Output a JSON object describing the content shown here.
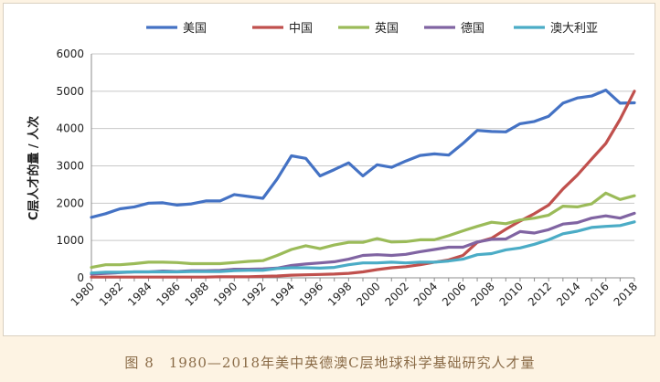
{
  "caption": "图 8　1980—2018年美中英德澳C层地球科学基础研究人才量",
  "chart_data": {
    "type": "line",
    "title": "",
    "xlabel": "",
    "ylabel": "C层人才的量 / 人次",
    "x": [
      1980,
      1981,
      1982,
      1983,
      1984,
      1985,
      1986,
      1987,
      1988,
      1989,
      1990,
      1991,
      1992,
      1993,
      1994,
      1995,
      1996,
      1997,
      1998,
      1999,
      2000,
      2001,
      2002,
      2003,
      2004,
      2005,
      2006,
      2007,
      2008,
      2009,
      2010,
      2011,
      2012,
      2013,
      2014,
      2015,
      2016,
      2017,
      2018
    ],
    "x_tick_labels": [
      "1980",
      "1982",
      "1984",
      "1986",
      "1988",
      "1990",
      "1992",
      "1994",
      "1996",
      "1998",
      "2000",
      "2002",
      "2004",
      "2006",
      "2008",
      "2010",
      "2012",
      "2014",
      "2016",
      "2018"
    ],
    "ylim": [
      0,
      6000
    ],
    "y_ticks": [
      "0",
      "1000",
      "2000",
      "3000",
      "4000",
      "5000",
      "6000"
    ],
    "grid": true,
    "legend_position": "top",
    "series": [
      {
        "name": "美国",
        "color": "#4472c4",
        "values": [
          1620,
          1720,
          1850,
          1900,
          2000,
          2010,
          1950,
          1980,
          2060,
          2060,
          2230,
          2180,
          2130,
          2650,
          3270,
          3200,
          2730,
          2900,
          3080,
          2730,
          3030,
          2960,
          3130,
          3280,
          3320,
          3290,
          3600,
          3950,
          3920,
          3910,
          4130,
          4190,
          4330,
          4680,
          4820,
          4870,
          5030,
          4680,
          4690
        ]
      },
      {
        "name": "中国",
        "color": "#c0504d",
        "values": [
          20,
          20,
          20,
          20,
          20,
          20,
          20,
          20,
          20,
          30,
          30,
          30,
          40,
          50,
          70,
          80,
          90,
          100,
          120,
          160,
          220,
          270,
          300,
          350,
          420,
          480,
          600,
          950,
          1060,
          1300,
          1520,
          1720,
          1950,
          2380,
          2750,
          3180,
          3600,
          4250,
          5000
        ]
      },
      {
        "name": "英国",
        "color": "#9bbb59",
        "values": [
          280,
          350,
          350,
          380,
          420,
          420,
          410,
          380,
          380,
          380,
          410,
          440,
          460,
          600,
          760,
          860,
          780,
          880,
          950,
          950,
          1050,
          960,
          970,
          1020,
          1020,
          1130,
          1260,
          1380,
          1490,
          1450,
          1550,
          1600,
          1680,
          1920,
          1900,
          1980,
          2270,
          2100,
          2200
        ]
      },
      {
        "name": "德国",
        "color": "#8064a2",
        "values": [
          100,
          120,
          140,
          160,
          160,
          180,
          170,
          190,
          190,
          200,
          230,
          230,
          240,
          260,
          330,
          370,
          400,
          430,
          500,
          600,
          620,
          600,
          630,
          700,
          760,
          820,
          820,
          960,
          1030,
          1040,
          1240,
          1200,
          1290,
          1440,
          1480,
          1600,
          1660,
          1600,
          1730
        ]
      },
      {
        "name": "澳大利亚",
        "color": "#4bacc6",
        "values": [
          130,
          150,
          150,
          160,
          160,
          160,
          160,
          170,
          170,
          170,
          190,
          200,
          200,
          250,
          270,
          270,
          260,
          280,
          350,
          400,
          400,
          420,
          400,
          420,
          420,
          450,
          500,
          620,
          650,
          750,
          800,
          900,
          1020,
          1180,
          1250,
          1350,
          1380,
          1400,
          1500
        ]
      }
    ]
  }
}
